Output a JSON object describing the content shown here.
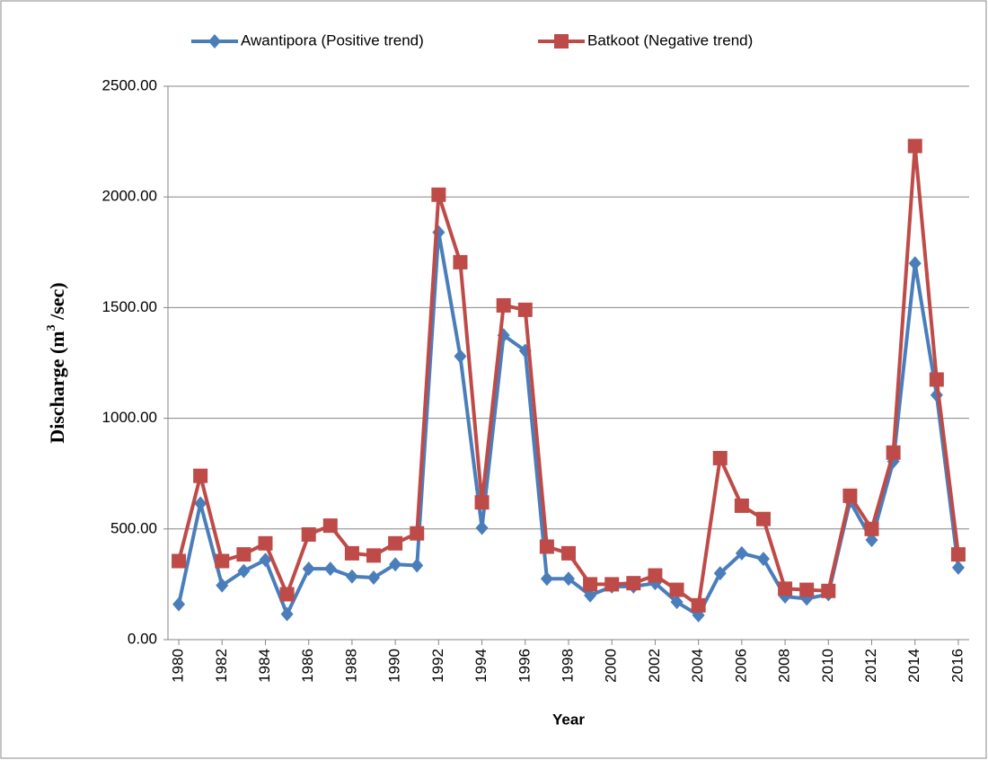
{
  "chart_data": {
    "type": "line",
    "x_label": "Year",
    "y_label": [
      "Discharge (m",
      "3",
      " /sec)"
    ],
    "x": [
      1980,
      1981,
      1982,
      1983,
      1984,
      1985,
      1986,
      1987,
      1988,
      1989,
      1990,
      1991,
      1992,
      1993,
      1994,
      1995,
      1996,
      1997,
      1998,
      1999,
      2000,
      2001,
      2002,
      2003,
      2004,
      2005,
      2006,
      2007,
      2008,
      2009,
      2010,
      2011,
      2012,
      2013,
      2014,
      2015,
      2016
    ],
    "series": [
      {
        "name": "Awantipora (Positive trend)",
        "color": "#4a7ebb",
        "marker": "diamond",
        "values": [
          160,
          615,
          245,
          310,
          360,
          115,
          320,
          320,
          285,
          280,
          340,
          335,
          1840,
          1280,
          505,
          1375,
          1305,
          275,
          275,
          200,
          240,
          240,
          255,
          170,
          110,
          300,
          390,
          365,
          195,
          185,
          205,
          625,
          450,
          805,
          1700,
          1105,
          325
        ]
      },
      {
        "name": "Batkoot (Negative trend)",
        "color": "#be4b48",
        "marker": "square",
        "values": [
          355,
          740,
          355,
          385,
          435,
          205,
          475,
          515,
          390,
          380,
          435,
          480,
          2010,
          1705,
          620,
          1510,
          1490,
          420,
          390,
          250,
          250,
          255,
          290,
          225,
          155,
          820,
          605,
          545,
          230,
          225,
          220,
          650,
          500,
          845,
          2230,
          1175,
          385
        ]
      }
    ],
    "xlim": [
      1979.5,
      2016.5
    ],
    "xticks": [
      1980,
      1982,
      1984,
      1986,
      1988,
      1990,
      1992,
      1994,
      1996,
      1998,
      2000,
      2002,
      2004,
      2006,
      2008,
      2010,
      2012,
      2014,
      2016
    ],
    "ylim": [
      0,
      2500
    ],
    "yticks": [
      {
        "value": 0,
        "label": "0.00"
      },
      {
        "value": 500,
        "label": "500.00"
      },
      {
        "value": 1000,
        "label": "1000.00"
      },
      {
        "value": 1500,
        "label": "1500.00"
      },
      {
        "value": 2000,
        "label": "2000.00"
      },
      {
        "value": 2500,
        "label": "2500.00"
      }
    ],
    "grid": true,
    "legend": "top"
  }
}
